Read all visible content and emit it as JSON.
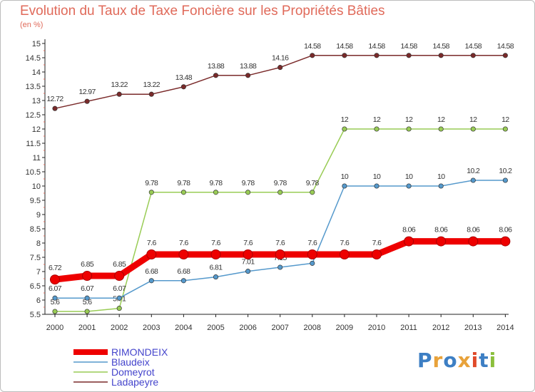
{
  "title": "Evolution du Taux de Taxe Foncière sur les Propriétés Bâties",
  "unit_label": "(en %)",
  "logo_text": "Proxiti",
  "chart_data": {
    "type": "line",
    "title": "Evolution du Taux de Taxe Foncière sur les Propriétés Bâties",
    "ylabel": "(en %)",
    "xlabel": "",
    "ylim": [
      5.5,
      15
    ],
    "yticks": [
      "5.5",
      "6",
      "6.5",
      "7",
      "7.5",
      "8",
      "8.5",
      "9",
      "9.5",
      "10",
      "10.5",
      "11",
      "11.5",
      "12",
      "12.5",
      "13",
      "13.5",
      "14",
      "14.5",
      "15"
    ],
    "categories": [
      "2000",
      "2001",
      "2002",
      "2003",
      "2004",
      "2005",
      "2006",
      "2007",
      "2008",
      "2009",
      "2010",
      "2011",
      "2012",
      "2013",
      "2014"
    ],
    "grid": false,
    "legend_position": "bottom-left",
    "series": [
      {
        "name": "Ladapeyre",
        "color": "#7a2a2a",
        "values": [
          12.72,
          12.97,
          13.22,
          13.22,
          13.48,
          13.88,
          13.88,
          14.16,
          14.58,
          14.58,
          14.58,
          14.58,
          14.58,
          14.58,
          14.58
        ],
        "labels": [
          "12.72",
          "12.97",
          "13.22",
          "13.22",
          "13.48",
          "13.88",
          "13.88",
          "14.16",
          "14.58",
          "14.58",
          "14.58",
          "14.58",
          "14.58",
          "14.58",
          "14.58"
        ]
      },
      {
        "name": "Domeyrot",
        "color": "#99cc55",
        "values": [
          5.6,
          5.6,
          5.71,
          9.78,
          9.78,
          9.78,
          9.78,
          9.78,
          9.78,
          12,
          12,
          12,
          12,
          12,
          12
        ],
        "labels": [
          "5.6",
          "5.6",
          "5.71",
          "9.78",
          "9.78",
          "9.78",
          "9.78",
          "9.78",
          "9.78",
          "12",
          "12",
          "12",
          "12",
          "12",
          "12"
        ]
      },
      {
        "name": "Blaudeix",
        "color": "#5599cc",
        "values": [
          6.07,
          6.07,
          6.07,
          6.68,
          6.68,
          6.81,
          7.01,
          7.15,
          7.29,
          10,
          10,
          10,
          10,
          10.2,
          10.2
        ],
        "labels": [
          "6.07",
          "6.07",
          "6.07",
          "6.68",
          "6.68",
          "6.81",
          "7.01",
          "7.15",
          "7.29",
          "10",
          "10",
          "10",
          "10",
          "10.2",
          "10.2"
        ]
      },
      {
        "name": "RIMONDEIX",
        "color": "#ee0000",
        "values": [
          6.72,
          6.85,
          6.85,
          7.6,
          7.6,
          7.6,
          7.6,
          7.6,
          7.6,
          7.6,
          7.6,
          8.06,
          8.06,
          8.06,
          8.06
        ],
        "labels": [
          "6.72",
          "6.85",
          "6.85",
          "7.6",
          "7.6",
          "7.6",
          "7.6",
          "7.6",
          "7.6",
          "7.6",
          "7.6",
          "8.06",
          "8.06",
          "8.06",
          "8.06"
        ]
      }
    ],
    "legend": [
      {
        "name": "RIMONDEIX",
        "color": "#ee0000"
      },
      {
        "name": "Blaudeix",
        "color": "#5599cc"
      },
      {
        "name": "Domeyrot",
        "color": "#99cc55"
      },
      {
        "name": "Ladapeyre",
        "color": "#7a2a2a"
      }
    ]
  }
}
